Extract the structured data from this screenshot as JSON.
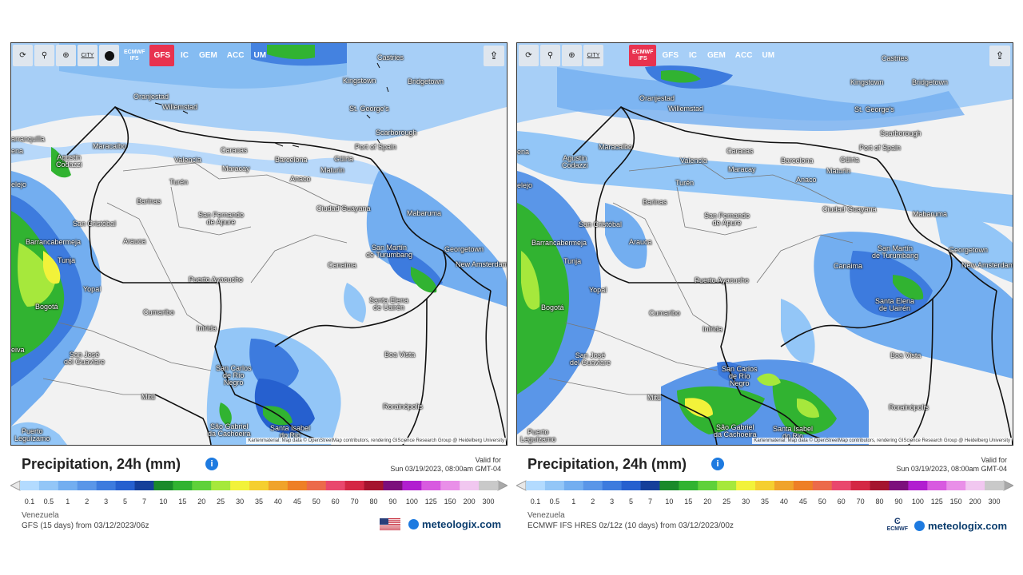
{
  "toolbar": {
    "tools": [
      "⟳",
      "⚲",
      "⊕",
      "CITY"
    ],
    "left_models": [
      "ECMWF IFS",
      "GFS",
      "IC",
      "GEM",
      "ACC",
      "UM"
    ],
    "right_models": [
      "ECMWF IFS",
      "GFS",
      "IC",
      "GEM",
      "ACC",
      "UM"
    ]
  },
  "cities": {
    "castries": "Castries",
    "kingstown": "Kingstown",
    "bridgetown": "Bridgetown",
    "st_georges": "St. George's",
    "scarborough": "Scarborough",
    "port_of_spain": "Port of Spain",
    "oranjestad": "Oranjestad",
    "willemstad": "Willemstad",
    "maracaibo": "Maracaibo",
    "barranquilla": "arranquilla",
    "agustin_l1": "Agustin",
    "agustin_l2": "Codazzi",
    "caracas": "Caracas",
    "valencia": "Valencia",
    "maracay": "Maracay",
    "barcelona": "Barcelona",
    "maturin": "Maturin",
    "guiria": "Güiria",
    "turen": "Turén",
    "anaco": "Anaco",
    "barinas": "Barinas",
    "san_cristobal": "San Cristóbal",
    "san_fernando_l1": "San Fernando",
    "san_fernando_l2": "de Apure",
    "ciudad_guayana": "Ciudad Guayana",
    "mabaruma": "Mabaruma",
    "barrancabermeja": "Barrancabermeja",
    "arauca": "Arauca",
    "san_martin_l1": "San Martín",
    "san_martin_l2": "de Turumbang",
    "georgetown": "Georgetown",
    "new_amsterdam": "New Amsterdam",
    "canaima": "Canaima",
    "tunja": "Tunja",
    "yopal": "Yopal",
    "puerto_ayacucho": "Puerto Ayacucho",
    "santa_elena_l1": "Santa Elena",
    "santa_elena_l2": "de Uairén",
    "bogota": "Bogotá",
    "cumaribo": "Cumaribo",
    "inirida": "Inírida",
    "boa_vista": "Boa Vista",
    "san_jose_l1": "San José",
    "san_jose_l2": "del Guaviare",
    "san_carlos_l1": "San Carlos",
    "san_carlos_l2": "de Río",
    "san_carlos_l3": "Negro",
    "mitu": "Mitú",
    "rorainopolis": "Rorainópolis",
    "sao_gabriel_l1": "São Gabriel",
    "sao_gabriel_l2": "da Cachoeira",
    "santa_isabel_l1": "Santa Isabel",
    "santa_isabel_l2": "do Rio",
    "puerto_l1": "Puerto",
    "puerto_l2": "Leguízamo",
    "bogota_frag": "iena",
    "cuelejo": "elejo",
    "neiva": "eiva",
    "gena": "ena"
  },
  "credit": "Kartenmaterial: Map data © OpenStreetMap contributors, rendering GIScience Research Group @ Heidelberg University",
  "left": {
    "title": "Precipitation, 24h (mm)",
    "valid_label": "Valid for",
    "valid_date": "Sun 03/19/2023, 08:00am GMT-04",
    "region": "Venezuela",
    "run": "GFS (15 days) from 03/12/2023/06z",
    "brand": "meteologix.com",
    "active_model": "GFS"
  },
  "right": {
    "title": "Precipitation, 24h (mm)",
    "valid_label": "Valid for",
    "valid_date": "Sun 03/19/2023, 08:00am GMT-04",
    "region": "Venezuela",
    "run": "ECMWF IFS HRES 0z/12z (10 days) from 03/12/2023/00z",
    "brand": "meteologix.com",
    "ecmwf_label": "ECMWF",
    "active_model": "ECMWF IFS"
  },
  "scale": {
    "labels": [
      "0.1",
      "0.5",
      "1",
      "2",
      "3",
      "5",
      "7",
      "10",
      "15",
      "20",
      "25",
      "30",
      "35",
      "40",
      "45",
      "50",
      "60",
      "70",
      "80",
      "90",
      "100",
      "125",
      "150",
      "200",
      "300"
    ],
    "colors": [
      "#b3dbff",
      "#93c6f7",
      "#73aef0",
      "#5a96e8",
      "#3d7bde",
      "#2660cf",
      "#153f9a",
      "#1a8a2a",
      "#31b331",
      "#5fd13a",
      "#a6e83c",
      "#f2f23a",
      "#f5cf30",
      "#f0a32a",
      "#ee7f26",
      "#ec6a4a",
      "#e9476d",
      "#d42744",
      "#a5142e",
      "#7c0f7c",
      "#b11ed0",
      "#d85ae0",
      "#e98fe8",
      "#f1c7f0",
      "#c9c9c9"
    ]
  }
}
